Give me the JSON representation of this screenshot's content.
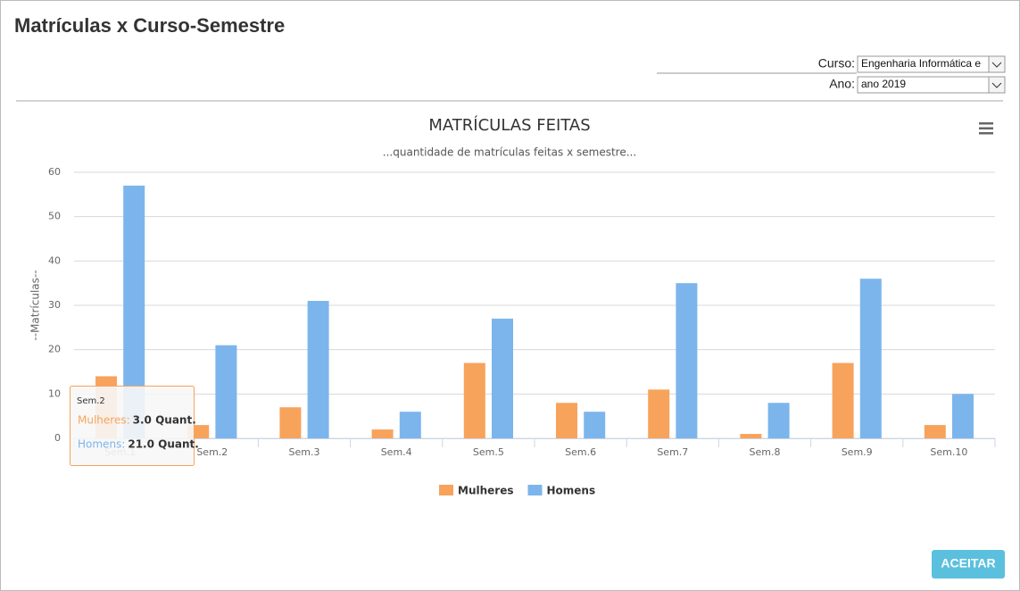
{
  "dialog": {
    "title": "Matrículas x Curso-Semestre",
    "button": "ACEITAR"
  },
  "filters": {
    "curso_label": "Curso:",
    "curso_value": "Engenharia Informática e",
    "ano_label": "Ano:",
    "ano_value": "ano 2019"
  },
  "chart_data": {
    "type": "bar",
    "title": "MATRÍCULAS FEITAS",
    "subtitle": "...quantidade de matrículas feitas x semestre...",
    "y_label": "--Matrículas--",
    "categories": [
      "Sem.1",
      "Sem.2",
      "Sem.3",
      "Sem.4",
      "Sem.5",
      "Sem.6",
      "Sem.7",
      "Sem.8",
      "Sem.9",
      "Sem.10"
    ],
    "series": [
      {
        "name": "Mulheres",
        "color": "#f7a35c",
        "values": [
          14,
          3,
          7,
          2,
          17,
          8,
          11,
          1,
          17,
          3
        ]
      },
      {
        "name": "Homens",
        "color": "#7cb5ec",
        "values": [
          57,
          21,
          31,
          6,
          27,
          6,
          35,
          8,
          36,
          10
        ]
      }
    ],
    "ylim": [
      0,
      60
    ],
    "yticks": [
      0,
      10,
      20,
      30,
      40,
      50,
      60
    ],
    "grid": true,
    "legend": "bottom",
    "tooltip": {
      "header": "Sem.2",
      "rows": [
        {
          "name": "Mulheres:",
          "value": "3.0 Quant."
        },
        {
          "name": "Homens:",
          "value": "21.0 Quant."
        }
      ]
    }
  }
}
